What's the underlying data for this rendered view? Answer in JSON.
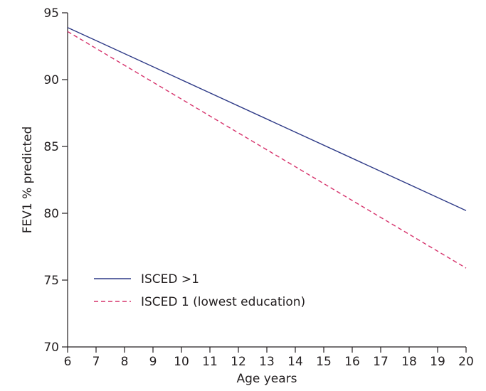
{
  "chart_data": {
    "type": "line",
    "title": "",
    "xlabel": "Age years",
    "ylabel": "FEV1 % predicted",
    "xlim": [
      6,
      20
    ],
    "ylim": [
      70,
      95
    ],
    "x_ticks": [
      6,
      7,
      8,
      9,
      10,
      11,
      12,
      13,
      14,
      15,
      16,
      17,
      18,
      19,
      20
    ],
    "y_ticks": [
      70,
      75,
      80,
      85,
      90,
      95
    ],
    "grid": false,
    "legend_position": "bottom-left",
    "series": [
      {
        "name": "ISCED >1",
        "color": "#2e3a87",
        "style": "solid",
        "x": [
          6,
          20
        ],
        "y": [
          93.9,
          80.2
        ]
      },
      {
        "name": "ISCED 1 (lowest education)",
        "color": "#d6336c",
        "style": "dashed",
        "x": [
          6,
          20
        ],
        "y": [
          93.6,
          75.9
        ]
      }
    ]
  }
}
